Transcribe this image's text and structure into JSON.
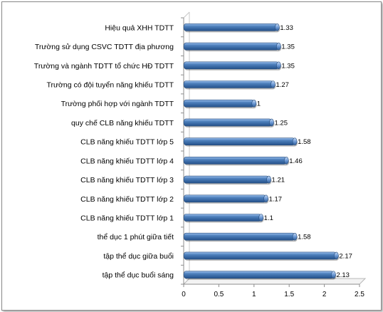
{
  "chart_data": {
    "type": "bar",
    "orientation": "horizontal",
    "categories": [
      "Hiệu quả XHH TDTT",
      "Trường sử dụng CSVC TDTT địa phương",
      "Trường và ngành TDTT tổ chức HĐ TDTT",
      "Trường có đội tuyển năng khiếu TDTT",
      "Trường phối hợp với ngành TDTT",
      "quy chế CLB năng khiếu TDTT",
      "CLB năng khiếu TDTT lớp 5",
      "CLB năng khiếu TDTT lớp 4",
      "CLB năng khiếu TDTT lớp 3",
      "CLB năng khiếu TDTT lớp 2",
      "CLB năng khiếu TDTT lớp 1",
      "thể dục 1 phút giữa tiết",
      "tập thể dục giữa buổi",
      "tập thể dục buổi sáng"
    ],
    "values": [
      1.33,
      1.35,
      1.35,
      1.27,
      1,
      1.25,
      1.58,
      1.46,
      1.21,
      1.17,
      1.1,
      1.58,
      2.17,
      2.13
    ],
    "value_labels": [
      "1.33",
      "1.35",
      "1.35",
      "1.27",
      "1",
      "1.25",
      "1.58",
      "1.46",
      "1.21",
      "1.17",
      "1.1",
      "1.58",
      "2.17",
      "2.13"
    ],
    "xlim": [
      0,
      2.5
    ],
    "xticks": [
      0,
      0.5,
      1,
      1.5,
      2,
      2.5
    ],
    "xtick_labels": [
      "0",
      "0.5",
      "1",
      "1.5",
      "2",
      "2.5"
    ],
    "grid": false,
    "legend": "none",
    "title": "",
    "xlabel": "",
    "ylabel": "",
    "colors": {
      "bar_light": "#9cc0ee",
      "bar_mid": "#4f81bd",
      "bar_dark": "#23508a",
      "wall": "#ffffff",
      "axis": "#8c8c8c"
    }
  }
}
